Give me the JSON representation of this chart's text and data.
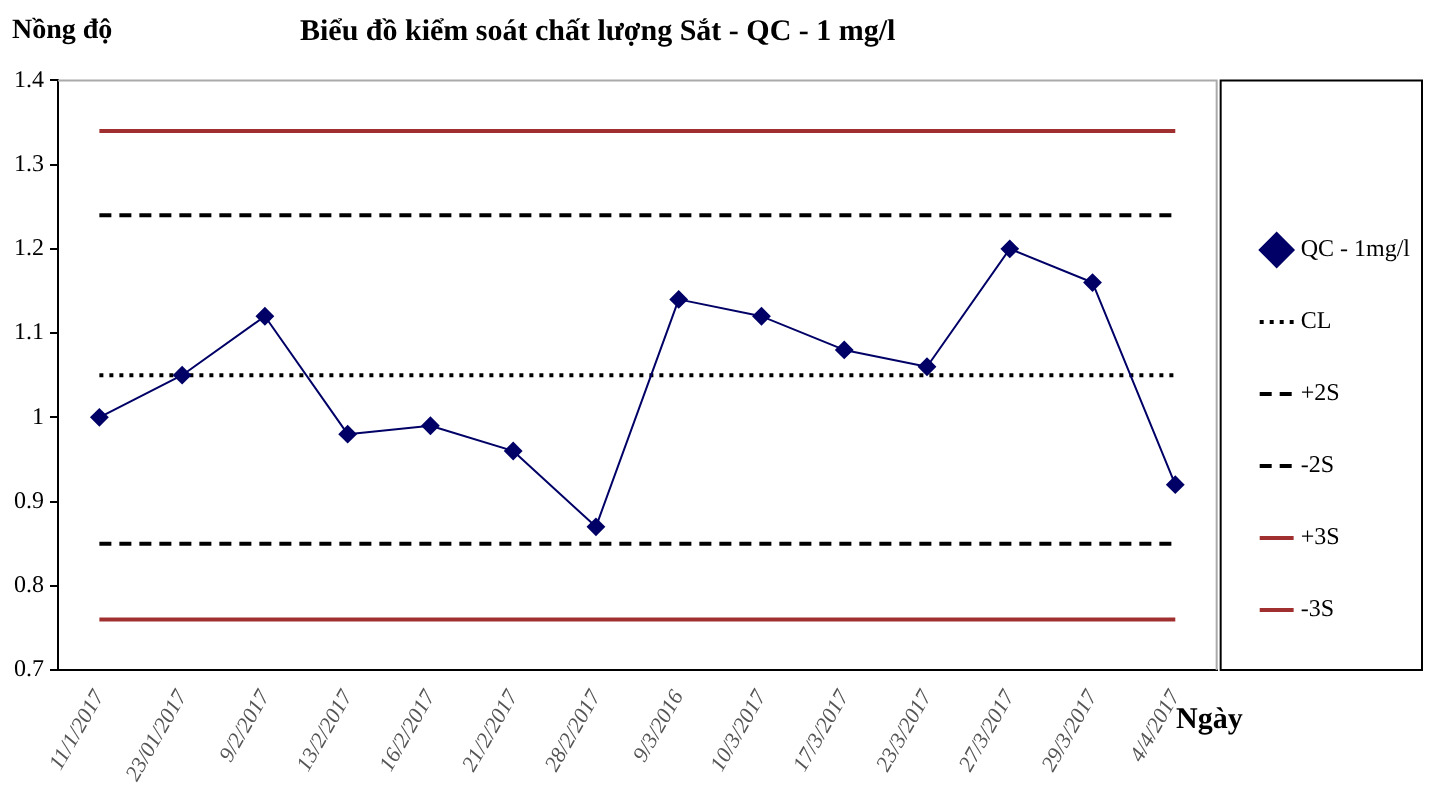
{
  "chart_data": {
    "type": "line",
    "title": "Biểu đồ kiểm soát chất lượng Sắt - QC - 1 mg/l",
    "xlabel": "Ngày",
    "ylabel": "Nồng độ",
    "categories": [
      "11/1/2017",
      "23/01/2017",
      "9/2/2017",
      "13/2/2017",
      "16/2/2017",
      "21/2/2017",
      "28/2/2017",
      "9/3/2016",
      "10/3/2017",
      "17/3/2017",
      "23/3/2017",
      "27/3/2017",
      "29/3/2017",
      "4/4/2017"
    ],
    "series": [
      {
        "name": "QC - 1mg/l",
        "color": "#000066",
        "marker": "diamond",
        "line_style": "solid",
        "values": [
          1.0,
          1.05,
          1.12,
          0.98,
          0.99,
          0.96,
          0.87,
          1.14,
          1.12,
          1.08,
          1.06,
          1.2,
          1.16,
          0.92
        ]
      },
      {
        "name": "CL",
        "color": "#000000",
        "marker": "none",
        "line_style": "dotted",
        "values": [
          1.05,
          1.05,
          1.05,
          1.05,
          1.05,
          1.05,
          1.05,
          1.05,
          1.05,
          1.05,
          1.05,
          1.05,
          1.05,
          1.05
        ]
      },
      {
        "name": "+2S",
        "color": "#000000",
        "marker": "none",
        "line_style": "dashed",
        "values": [
          1.24,
          1.24,
          1.24,
          1.24,
          1.24,
          1.24,
          1.24,
          1.24,
          1.24,
          1.24,
          1.24,
          1.24,
          1.24,
          1.24
        ]
      },
      {
        "name": "-2S",
        "color": "#000000",
        "marker": "none",
        "line_style": "dashed",
        "values": [
          0.85,
          0.85,
          0.85,
          0.85,
          0.85,
          0.85,
          0.85,
          0.85,
          0.85,
          0.85,
          0.85,
          0.85,
          0.85,
          0.85
        ]
      },
      {
        "name": "+3S",
        "color": "#a03030",
        "marker": "none",
        "line_style": "solid",
        "values": [
          1.34,
          1.34,
          1.34,
          1.34,
          1.34,
          1.34,
          1.34,
          1.34,
          1.34,
          1.34,
          1.34,
          1.34,
          1.34,
          1.34
        ]
      },
      {
        "name": "-3S",
        "color": "#a03030",
        "marker": "none",
        "line_style": "solid",
        "values": [
          0.76,
          0.76,
          0.76,
          0.76,
          0.76,
          0.76,
          0.76,
          0.76,
          0.76,
          0.76,
          0.76,
          0.76,
          0.76,
          0.76
        ]
      }
    ],
    "ylim": [
      0.7,
      1.4
    ],
    "yticks": [
      0.7,
      0.8,
      0.9,
      1,
      1.1,
      1.2,
      1.3,
      1.4
    ],
    "grid": false,
    "legend": "right"
  }
}
